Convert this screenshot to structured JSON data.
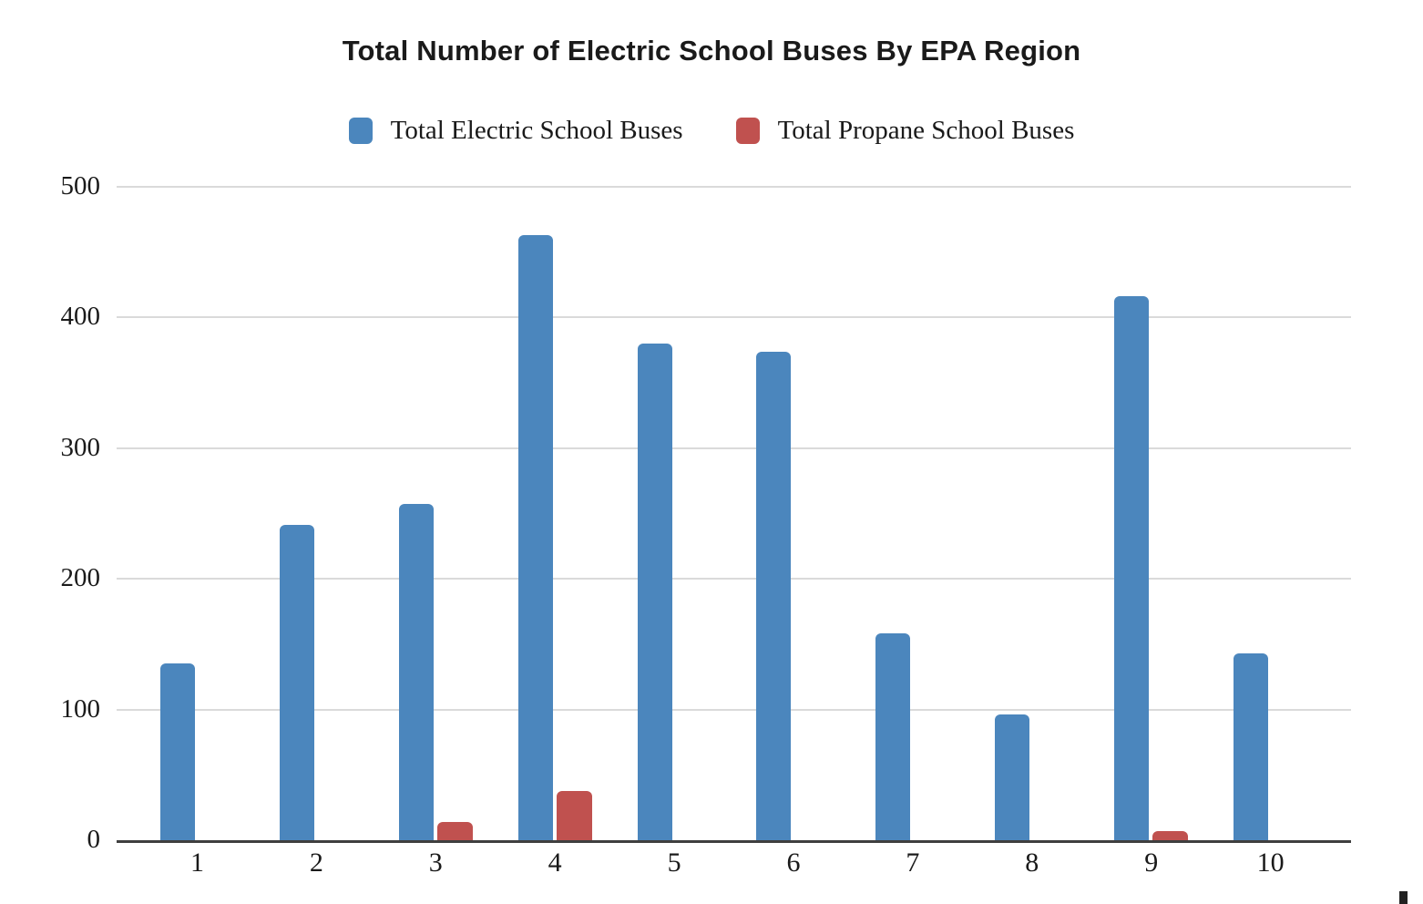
{
  "title": "Total Number of Electric School Buses By EPA Region",
  "chart_data": {
    "type": "bar",
    "title": "Total Number of Electric School Buses By EPA Region",
    "categories": [
      "1",
      "2",
      "3",
      "4",
      "5",
      "6",
      "7",
      "8",
      "9",
      "10"
    ],
    "series": [
      {
        "name": "Total Electric School Buses",
        "color": "#4b86bd",
        "values": [
          135,
          241,
          257,
          463,
          380,
          374,
          158,
          96,
          416,
          143
        ]
      },
      {
        "name": "Total Propane School Buses",
        "color": "#c0514f",
        "values": [
          0,
          0,
          14,
          38,
          0,
          0,
          0,
          0,
          7,
          0
        ]
      }
    ],
    "xlabel": "",
    "ylabel": "",
    "ylim": [
      0,
      500
    ],
    "yticks": [
      0,
      100,
      200,
      300,
      400,
      500
    ],
    "grid": true,
    "legend_position": "top",
    "colors": {
      "gridline": "#dadada",
      "axis": "#3f3f3f",
      "text": "#1a1a1a"
    }
  }
}
